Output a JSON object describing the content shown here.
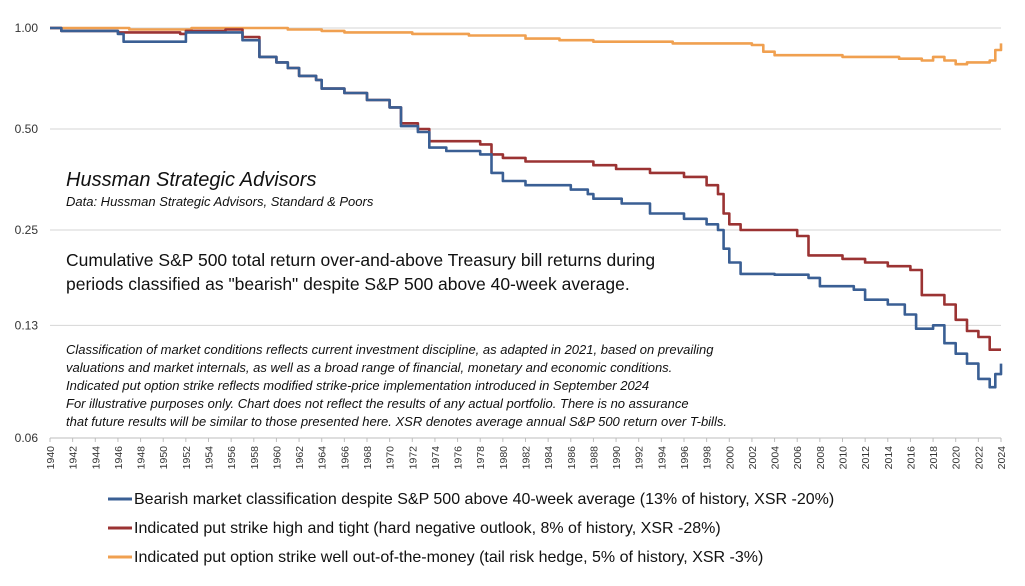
{
  "chart_data": {
    "type": "line",
    "y_scale": "log",
    "ylim": [
      0.06,
      1.0
    ],
    "xlim": [
      1940,
      2024
    ],
    "y_ticks": [
      "1.00",
      "0.50",
      "0.25",
      "0.13",
      "0.06"
    ],
    "y_tick_values": [
      1.0,
      0.5,
      0.25,
      0.13,
      0.06
    ],
    "x_ticks": [
      "1940",
      "1942",
      "1944",
      "1946",
      "1948",
      "1950",
      "1952",
      "1954",
      "1956",
      "1958",
      "1960",
      "1962",
      "1964",
      "1966",
      "1968",
      "1970",
      "1972",
      "1974",
      "1976",
      "1978",
      "1980",
      "1982",
      "1984",
      "1986",
      "1988",
      "1990",
      "1992",
      "1994",
      "1996",
      "1998",
      "2000",
      "2002",
      "2004",
      "2006",
      "2008",
      "2010",
      "2012",
      "2014",
      "2016",
      "2018",
      "2020",
      "2022",
      "2024"
    ],
    "grid": "horizontal",
    "legend_position": "bottom",
    "source_title": "Hussman Strategic Advisors",
    "source_line": "Data: Hussman Strategic Advisors, Standard & Poors",
    "headline": [
      "Cumulative S&P 500 total return over-and-above Treasury bill returns during",
      "periods classified as \"bearish\" despite S&P 500 above 40-week average."
    ],
    "notes": [
      "Classification of market conditions reflects current investment discipline, as adapted in 2021, based on prevailing",
      "valuations and market internals, as well as a broad range of financial, monetary and economic conditions.",
      "Indicated put option strike reflects modified strike-price implementation introduced in September 2024",
      "For illustrative purposes only. Chart does not reflect the results of any actual portfolio. There is no assurance",
      "that future results will be similar to those presented here. XSR denotes  average annual S&P 500 return over T-bills."
    ],
    "series": [
      {
        "name": "Bearish market classification despite S&P 500 above 40-week average (13% of history, XSR -20%)",
        "color": "#3a5f94",
        "points": [
          [
            1940,
            1.0
          ],
          [
            1941,
            0.98
          ],
          [
            1946,
            0.96
          ],
          [
            1946.5,
            0.91
          ],
          [
            1951.5,
            0.91
          ],
          [
            1952,
            0.97
          ],
          [
            1955.5,
            0.97
          ],
          [
            1957,
            0.92
          ],
          [
            1958.5,
            0.82
          ],
          [
            1960,
            0.79
          ],
          [
            1961,
            0.76
          ],
          [
            1962,
            0.72
          ],
          [
            1963.5,
            0.7
          ],
          [
            1964,
            0.66
          ],
          [
            1966,
            0.64
          ],
          [
            1968,
            0.61
          ],
          [
            1970,
            0.58
          ],
          [
            1971,
            0.51
          ],
          [
            1972.5,
            0.49
          ],
          [
            1973.5,
            0.44
          ],
          [
            1975,
            0.43
          ],
          [
            1978,
            0.42
          ],
          [
            1979,
            0.37
          ],
          [
            1980,
            0.35
          ],
          [
            1982,
            0.34
          ],
          [
            1986,
            0.33
          ],
          [
            1987.5,
            0.32
          ],
          [
            1988,
            0.31
          ],
          [
            1990.5,
            0.3
          ],
          [
            1993,
            0.28
          ],
          [
            1996,
            0.27
          ],
          [
            1998,
            0.26
          ],
          [
            1999,
            0.25
          ],
          [
            1999.5,
            0.22
          ],
          [
            2000,
            0.2
          ],
          [
            2001,
            0.185
          ],
          [
            2004,
            0.184
          ],
          [
            2007,
            0.18
          ],
          [
            2008,
            0.17
          ],
          [
            2011,
            0.166
          ],
          [
            2012,
            0.155
          ],
          [
            2014,
            0.15
          ],
          [
            2015.5,
            0.14
          ],
          [
            2016.5,
            0.127
          ],
          [
            2018,
            0.13
          ],
          [
            2019,
            0.115
          ],
          [
            2020,
            0.107
          ],
          [
            2021,
            0.1
          ],
          [
            2022,
            0.09
          ],
          [
            2023,
            0.085
          ],
          [
            2023.5,
            0.093
          ],
          [
            2024,
            0.1
          ]
        ]
      },
      {
        "name": "Indicated put strike high and tight (hard negative outlook, 8% of history, XSR -28%)",
        "color": "#9b3333",
        "points": [
          [
            1940,
            1.0
          ],
          [
            1941,
            0.98
          ],
          [
            1946,
            0.97
          ],
          [
            1951.5,
            0.96
          ],
          [
            1952,
            0.98
          ],
          [
            1955.5,
            0.99
          ],
          [
            1957,
            0.94
          ],
          [
            1958.5,
            0.82
          ],
          [
            1960,
            0.79
          ],
          [
            1961,
            0.76
          ],
          [
            1962,
            0.72
          ],
          [
            1963.5,
            0.7
          ],
          [
            1964,
            0.66
          ],
          [
            1966,
            0.64
          ],
          [
            1968,
            0.61
          ],
          [
            1970,
            0.58
          ],
          [
            1971,
            0.52
          ],
          [
            1972.5,
            0.5
          ],
          [
            1973.5,
            0.46
          ],
          [
            1975,
            0.46
          ],
          [
            1978,
            0.45
          ],
          [
            1979,
            0.42
          ],
          [
            1980,
            0.41
          ],
          [
            1982,
            0.4
          ],
          [
            1988,
            0.39
          ],
          [
            1990,
            0.38
          ],
          [
            1993,
            0.37
          ],
          [
            1996,
            0.36
          ],
          [
            1998,
            0.34
          ],
          [
            1999,
            0.32
          ],
          [
            1999.5,
            0.28
          ],
          [
            2000,
            0.26
          ],
          [
            2001,
            0.25
          ],
          [
            2004,
            0.25
          ],
          [
            2006,
            0.24
          ],
          [
            2007,
            0.21
          ],
          [
            2010,
            0.205
          ],
          [
            2012,
            0.2
          ],
          [
            2014,
            0.195
          ],
          [
            2016,
            0.19
          ],
          [
            2017,
            0.16
          ],
          [
            2018,
            0.16
          ],
          [
            2019,
            0.15
          ],
          [
            2020,
            0.135
          ],
          [
            2021,
            0.125
          ],
          [
            2022,
            0.12
          ],
          [
            2023,
            0.11
          ],
          [
            2024,
            0.11
          ]
        ]
      },
      {
        "name": "Indicated put option strike well out-of-the-money (tail risk hedge, 5% of history, XSR -3%)",
        "color": "#f0a050",
        "points": [
          [
            1940,
            1.0
          ],
          [
            1947,
            0.99
          ],
          [
            1952,
            0.99
          ],
          [
            1952.5,
            1.0
          ],
          [
            1958,
            1.0
          ],
          [
            1961,
            0.99
          ],
          [
            1964,
            0.98
          ],
          [
            1966,
            0.97
          ],
          [
            1972,
            0.96
          ],
          [
            1977,
            0.95
          ],
          [
            1982,
            0.93
          ],
          [
            1985,
            0.92
          ],
          [
            1988,
            0.91
          ],
          [
            1992,
            0.91
          ],
          [
            1995,
            0.9
          ],
          [
            1998,
            0.9
          ],
          [
            2002,
            0.89
          ],
          [
            2003,
            0.85
          ],
          [
            2004,
            0.83
          ],
          [
            2006,
            0.83
          ],
          [
            2010,
            0.82
          ],
          [
            2012,
            0.82
          ],
          [
            2015,
            0.81
          ],
          [
            2017,
            0.8
          ],
          [
            2018,
            0.82
          ],
          [
            2019,
            0.8
          ],
          [
            2020,
            0.78
          ],
          [
            2021,
            0.79
          ],
          [
            2023,
            0.8
          ],
          [
            2023.5,
            0.86
          ],
          [
            2024,
            0.9
          ]
        ]
      }
    ]
  }
}
